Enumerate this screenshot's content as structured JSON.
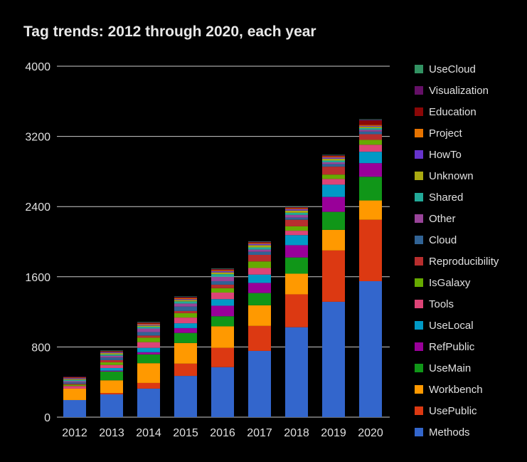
{
  "chart_data": {
    "type": "bar",
    "stacked": true,
    "title": "Tag trends: 2012 through 2020, each year",
    "xlabel": "",
    "ylabel": "",
    "ylim": [
      0,
      4000
    ],
    "yticks": [
      "0",
      "800",
      "1600",
      "2400",
      "3200",
      "4000"
    ],
    "grid": true,
    "legend_position": "right",
    "categories": [
      "2012",
      "2013",
      "2014",
      "2015",
      "2016",
      "2017",
      "2018",
      "2019",
      "2020"
    ],
    "series": [
      {
        "name": "Methods",
        "color": "#3366cc",
        "values": [
          195,
          260,
          325,
          470,
          570,
          755,
          1025,
          1315,
          1550
        ]
      },
      {
        "name": "UsePublic",
        "color": "#dc3912",
        "values": [
          0,
          15,
          65,
          140,
          220,
          285,
          375,
          585,
          700
        ]
      },
      {
        "name": "Workbench",
        "color": "#ff9900",
        "values": [
          130,
          145,
          225,
          235,
          245,
          235,
          235,
          235,
          220
        ]
      },
      {
        "name": "UseMain",
        "color": "#109618",
        "values": [
          0,
          100,
          100,
          115,
          115,
          140,
          185,
          205,
          270
        ]
      },
      {
        "name": "RefPublic",
        "color": "#990099",
        "values": [
          0,
          10,
          25,
          55,
          120,
          115,
          140,
          170,
          155
        ]
      },
      {
        "name": "UseLocal",
        "color": "#0099c6",
        "values": [
          0,
          30,
          50,
          55,
          75,
          95,
          115,
          140,
          130
        ]
      },
      {
        "name": "Tools",
        "color": "#dd4477",
        "values": [
          30,
          35,
          65,
          65,
          75,
          75,
          50,
          65,
          80
        ]
      },
      {
        "name": "IsGalaxy",
        "color": "#66aa00",
        "values": [
          15,
          30,
          50,
          50,
          50,
          75,
          50,
          50,
          55
        ]
      },
      {
        "name": "Reproducibility",
        "color": "#b82e2e",
        "values": [
          10,
          25,
          25,
          25,
          40,
          75,
          75,
          90,
          65
        ]
      },
      {
        "name": "Cloud",
        "color": "#316395",
        "values": [
          15,
          30,
          40,
          50,
          40,
          35,
          25,
          30,
          30
        ]
      },
      {
        "name": "Other",
        "color": "#994499",
        "values": [
          15,
          20,
          40,
          35,
          50,
          25,
          30,
          20,
          20
        ]
      },
      {
        "name": "Shared",
        "color": "#22aa99",
        "values": [
          15,
          15,
          20,
          25,
          30,
          25,
          25,
          20,
          20
        ]
      },
      {
        "name": "Unknown",
        "color": "#aaaa11",
        "values": [
          10,
          15,
          15,
          15,
          20,
          25,
          25,
          20,
          15
        ]
      },
      {
        "name": "HowTo",
        "color": "#6633cc",
        "values": [
          10,
          10,
          10,
          10,
          15,
          15,
          15,
          15,
          10
        ]
      },
      {
        "name": "Project",
        "color": "#e67300",
        "values": [
          5,
          5,
          10,
          10,
          10,
          10,
          10,
          10,
          10
        ]
      },
      {
        "name": "Education",
        "color": "#8b0707",
        "values": [
          5,
          5,
          10,
          10,
          10,
          10,
          10,
          10,
          50
        ]
      },
      {
        "name": "Visualization",
        "color": "#651067",
        "values": [
          5,
          5,
          5,
          5,
          5,
          5,
          5,
          5,
          10
        ]
      },
      {
        "name": "UseCloud",
        "color": "#329262",
        "values": [
          0,
          5,
          5,
          5,
          5,
          5,
          5,
          5,
          5
        ]
      }
    ]
  },
  "colors": {
    "background": "#000000",
    "text": "#e0e0e0",
    "gridline": "#cccccc"
  }
}
